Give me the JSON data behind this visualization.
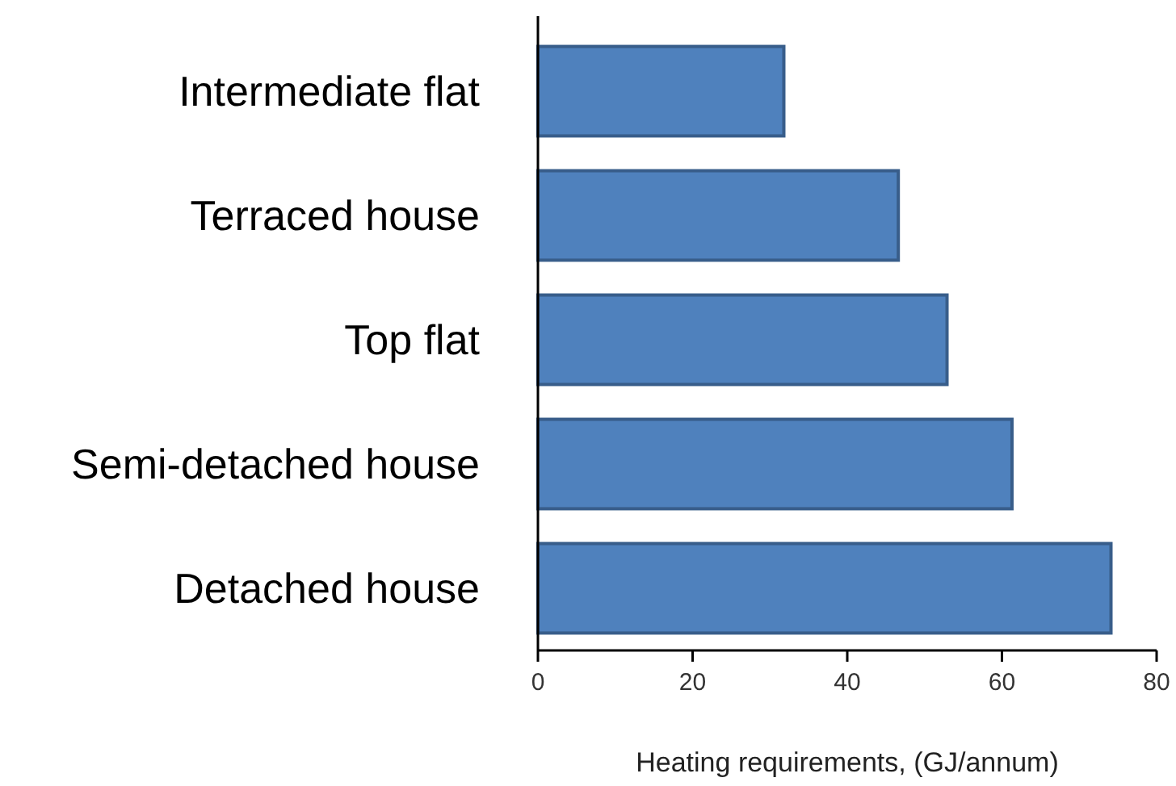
{
  "chart_data": {
    "type": "bar",
    "orientation": "horizontal",
    "xlabel": "Heating requirements, (GJ/annum)",
    "categories": [
      "Intermediate flat",
      "Terraced house",
      "Top flat",
      "Semi-detached house",
      "Detached house"
    ],
    "values": [
      31.8,
      46.6,
      52.9,
      61.3,
      74.1
    ],
    "color": "#4f81bd",
    "xlim": [
      0,
      80
    ],
    "xticks": [
      0,
      20,
      40,
      60,
      80
    ],
    "grid": false
  }
}
